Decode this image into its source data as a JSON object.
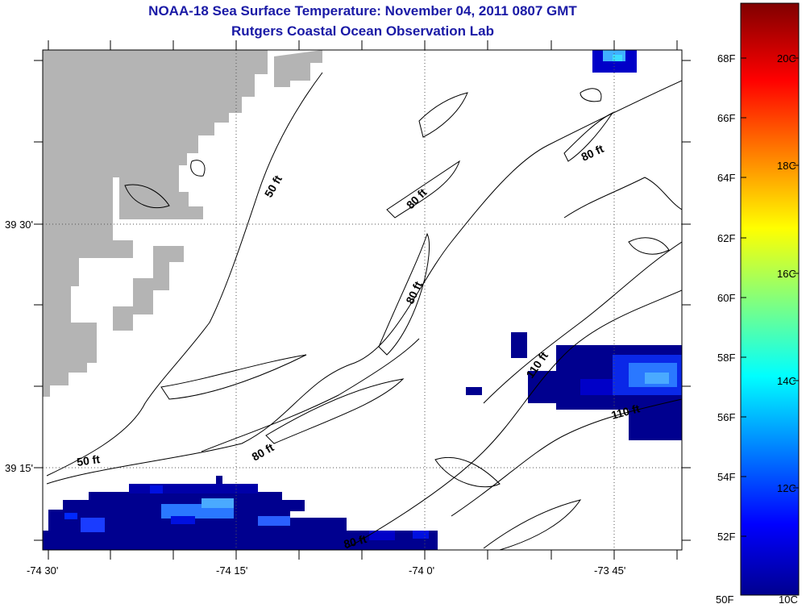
{
  "title": "NOAA-18 Sea Surface Temperature:  November 04, 2011 0807 GMT",
  "subtitle": "Rutgers Coastal Ocean Observation Lab",
  "map": {
    "x_ticks": [
      "-74 30'",
      "-74 15'",
      "-74 0'",
      "-73 45'"
    ],
    "y_ticks": [
      "39 30'",
      "39 15'"
    ],
    "contour_labels": [
      "50 ft",
      "50 ft",
      "80 ft",
      "80 ft",
      "80 ft",
      "80 ft",
      "80 ft",
      "110 ft",
      "110 ft"
    ],
    "land_color": "#b4b4b4",
    "gridlines": "dotted"
  },
  "colorbar": {
    "fahrenheit_labels": [
      "68F",
      "66F",
      "64F",
      "62F",
      "60F",
      "58F",
      "56F",
      "54F",
      "52F",
      "50F"
    ],
    "celsius_labels": [
      "20C",
      "18C",
      "16C",
      "14C",
      "12C",
      "10C"
    ],
    "colormap": "jet"
  }
}
